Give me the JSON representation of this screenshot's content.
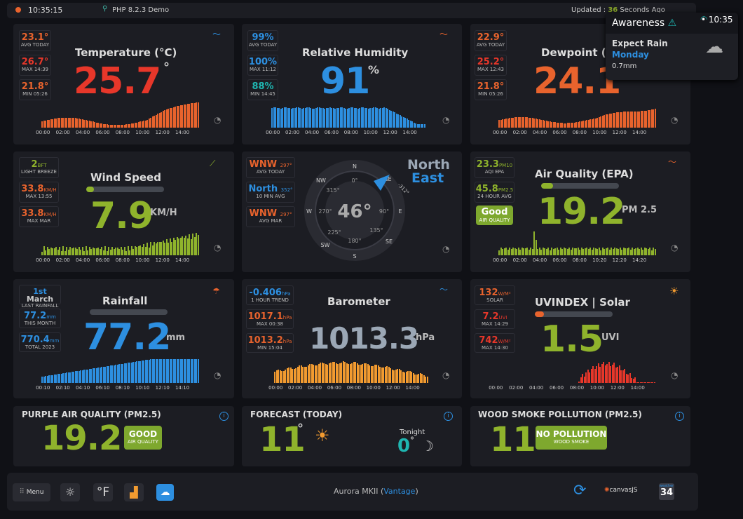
{
  "topbar": {
    "time": "10:35:15",
    "demo": "PHP 8.2.3 Demo",
    "updated_label": "Updated :",
    "updated_value": "36",
    "updated_suffix": "Seconds Ago"
  },
  "awareness": {
    "title": "Awareness",
    "time": "10:35",
    "rain_label": "Expect Rain",
    "rain_day": "Monday",
    "rain_amount": "0.7mm"
  },
  "temperature": {
    "title": "Temperature (°C)",
    "value": "25.7",
    "unit": "°",
    "avg": "23.1°",
    "avg_label": "AVG TODAY",
    "max": "26.7°",
    "max_label": "MAX 14:39",
    "min": "21.8°",
    "min_label": "MIN 05:26",
    "axis": [
      "00:00",
      "02:00",
      "04:00",
      "06:00",
      "08:00",
      "10:00",
      "12:00",
      "14:00"
    ]
  },
  "humidity": {
    "title": "Relative Humidity",
    "value": "91",
    "unit": "%",
    "avg": "99%",
    "avg_label": "AVG TODAY",
    "max": "100%",
    "max_label": "MAX 11:12",
    "min": "88%",
    "min_label": "MIN 14:45",
    "axis": [
      "00:00",
      "02:00",
      "04:00",
      "06:00",
      "08:00",
      "10:00",
      "12:00",
      "14:00"
    ]
  },
  "dewpoint": {
    "title": "Dewpoint (°",
    "value": "24.1",
    "avg": "22.9°",
    "avg_label": "AVG TODAY",
    "max": "25.2°",
    "max_label": "MAX 12:43",
    "min": "21.8°",
    "min_label": "MIN 05:26",
    "axis": [
      "00:00",
      "02:00",
      "04:00",
      "06:00",
      "08:00",
      "10:00",
      "12:00",
      "14:00"
    ]
  },
  "wind": {
    "title": "Wind Speed",
    "value": "7.9",
    "unit": "KM/H",
    "bft": "2",
    "bft_unit": "BFT",
    "bft_label": "LIGHT BREEZE",
    "max": "33.8",
    "max_unit": "KM/H",
    "max_label": "MAX 13:55",
    "maxmar": "33.8",
    "maxmar_unit": "KM/H",
    "maxmar_label": "MAX MAR",
    "progress": 0.1,
    "axis": [
      "00:00",
      "02:00",
      "04:00",
      "06:00",
      "08:00",
      "10:00",
      "12:00",
      "14:00"
    ]
  },
  "direction": {
    "value": "46°",
    "dir1": "North",
    "dir2": "East",
    "avg_today": "WNW",
    "avg_today_deg": "297°",
    "avg_today_label": "AVG TODAY",
    "avg10": "North",
    "avg10_deg": "352°",
    "avg10_label": "10 MIN AVG",
    "avgmar": "WNW",
    "avgmar_deg": "297°",
    "avgmar_label": "AVG MAR",
    "compass": [
      "N",
      "NE",
      "E",
      "SE",
      "S",
      "SW",
      "W",
      "NW"
    ],
    "degs": [
      "0°",
      "90°",
      "180°",
      "270°",
      "315°",
      "135°",
      "225°"
    ],
    "arrow_label": "-312°"
  },
  "air": {
    "title": "Air Quality (EPA)",
    "value": "19.2",
    "unit": "PM 2.5",
    "pm10": "23.3",
    "pm10_unit": "PM10",
    "pm10_label": "AQI EPA",
    "pm25": "45.8",
    "pm25_unit": "PM2.5",
    "pm25_label": "24 HOUR AVG",
    "badge": "Good",
    "badge_sub": "AIR QUALITY",
    "progress": 0.15,
    "axis": [
      "00:00",
      "02:00",
      "04:00",
      "06:00",
      "08:00",
      "10:20",
      "12:20",
      "14:20"
    ]
  },
  "rain": {
    "title": "Rainfall",
    "value": "77.2",
    "unit": "mm",
    "last": "1st",
    "last_month": "March",
    "last_label": "LAST RAINFALL",
    "month": "77.2",
    "month_unit": "mm",
    "month_label": "THIS MONTH",
    "total": "770.4",
    "total_unit": "mm",
    "total_label": "TOTAL 2023",
    "axis": [
      "00:10",
      "02:10",
      "04:10",
      "06:10",
      "08:10",
      "10:10",
      "12:10",
      "14:10"
    ]
  },
  "baro": {
    "title": "Barometer",
    "value": "1013.3",
    "unit": "hPa",
    "trend": "-0.406",
    "trend_unit": "hPa",
    "trend_label": "1 HOUR TREND",
    "max": "1017.1",
    "max_unit": "hPa",
    "max_label": "MAX 00:38",
    "min": "1013.2",
    "min_unit": "hPa",
    "min_label": "MIN 15:04",
    "axis": [
      "00:00",
      "02:00",
      "04:00",
      "06:00",
      "08:00",
      "10:00",
      "12:00",
      "14:00"
    ]
  },
  "uv": {
    "title": "UVINDEX | Solar",
    "value": "1.5",
    "unit": "UVI",
    "solar": "132",
    "solar_unit": "W/M²",
    "solar_label": "SOLAR",
    "max": "7.2",
    "max_unit": "UVI",
    "max_label": "MAX 14:29",
    "maxsol": "742",
    "maxsol_unit": "W/M²",
    "maxsol_label": "MAX 14:30",
    "progress": 0.12,
    "axis": [
      "00:00",
      "02:00",
      "04:00",
      "06:00",
      "08:00",
      "10:00",
      "12:00",
      "14:00"
    ]
  },
  "purple": {
    "title": "PURPLE AIR QUALITY (PM2.5)",
    "value": "19.2",
    "badge": "GOOD",
    "badge_sub": "AIR QUALITY"
  },
  "forecast": {
    "title": "FORECAST (TODAY)",
    "value": "11",
    "deg": "°",
    "tonight": "Tonight",
    "tonight_value": "0",
    "tonight_deg": "°"
  },
  "smoke": {
    "title": "WOOD SMOKE POLLUTION (PM2.5)",
    "value": "11",
    "badge": "NO POLLUTION",
    "badge_sub": "WOOD SMOKE"
  },
  "footer": {
    "menu": "Menu",
    "unit_btn": "°F",
    "station": "Aurora MKII (",
    "station_link": "Vantage",
    "station_end": ")",
    "canvas": "canvasJS",
    "cal_top": "weather",
    "cal_num": "34"
  },
  "colors": {
    "orange": "#e8632d",
    "red": "#e7372a",
    "blue": "#2d8fe0",
    "green": "#8fb32c",
    "teal": "#1fb5b0",
    "panel": "#1c1d23"
  }
}
